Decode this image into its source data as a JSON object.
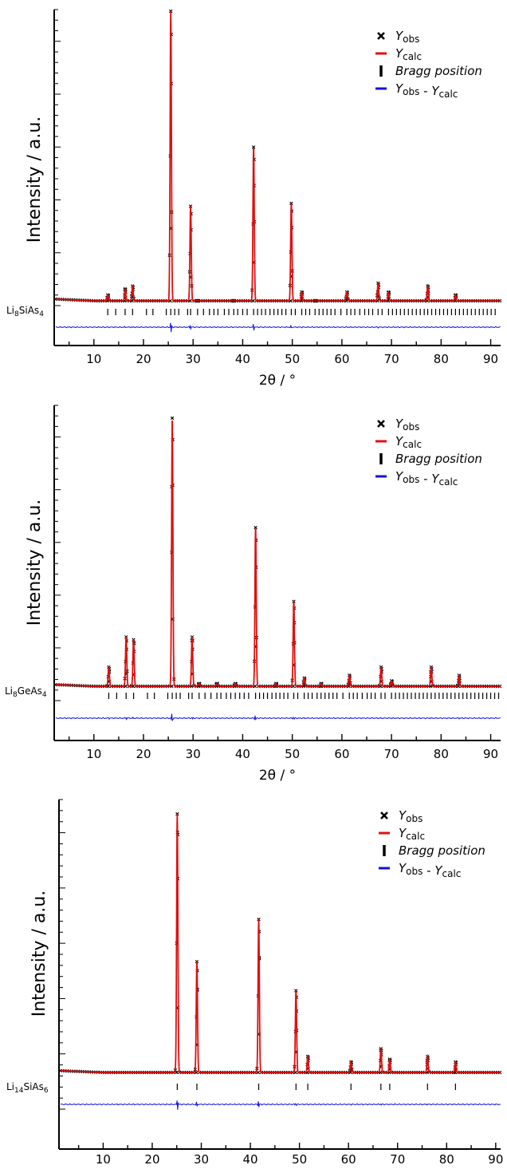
{
  "colors": {
    "obs": "#000000",
    "calc": "#e01010",
    "bragg": "#000000",
    "diff": "#1010e0"
  },
  "legend": [
    {
      "symbol": "cross",
      "label": "Y",
      "sub": "obs"
    },
    {
      "symbol": "red-line",
      "label": "Y",
      "sub": "calc"
    },
    {
      "symbol": "bar",
      "label": "Bragg position",
      "sub": ""
    },
    {
      "symbol": "blue-line",
      "label": "Y",
      "sub": "obs",
      "label2": " - Y",
      "sub2": "calc"
    }
  ],
  "chart_data": [
    {
      "type": "line",
      "title": "",
      "ylabel": "Intensity / a.u.",
      "xlabel": "2θ / °",
      "xlim": [
        2,
        92
      ],
      "xticks": [
        10,
        20,
        30,
        40,
        50,
        60,
        70,
        80,
        90
      ],
      "phase": {
        "main": "Li",
        "sub": "8",
        "rest": "SiAs",
        "sub2": "4"
      },
      "baseline": 0.02,
      "peaks": [
        {
          "x": 12.8,
          "y": 0.04
        },
        {
          "x": 16.3,
          "y": 0.06
        },
        {
          "x": 17.8,
          "y": 0.07
        },
        {
          "x": 25.5,
          "y": 1.0
        },
        {
          "x": 29.5,
          "y": 0.34
        },
        {
          "x": 30.9,
          "y": 0.02
        },
        {
          "x": 38.2,
          "y": 0.02
        },
        {
          "x": 42.2,
          "y": 0.54
        },
        {
          "x": 49.8,
          "y": 0.35
        },
        {
          "x": 51.9,
          "y": 0.05
        },
        {
          "x": 54.6,
          "y": 0.02
        },
        {
          "x": 61.0,
          "y": 0.05
        },
        {
          "x": 67.3,
          "y": 0.08
        },
        {
          "x": 69.4,
          "y": 0.05
        },
        {
          "x": 77.3,
          "y": 0.07
        },
        {
          "x": 82.9,
          "y": 0.04
        }
      ],
      "bragg_positions": [
        12.8,
        14.4,
        16.3,
        17.8,
        20.6,
        21.9,
        24.6,
        25.5,
        26.3,
        27.1,
        28.9,
        29.5,
        30.9,
        32.1,
        33.3,
        34.2,
        35.0,
        36.3,
        37.2,
        38.2,
        39.0,
        40.0,
        40.9,
        42.2,
        43.0,
        43.8,
        44.6,
        45.5,
        46.3,
        47.1,
        47.9,
        48.7,
        49.8,
        50.6,
        51.9,
        52.7,
        53.5,
        54.6,
        55.4,
        56.2,
        57.0,
        57.8,
        58.6,
        59.8,
        61.0,
        61.8,
        62.6,
        63.6,
        64.6,
        65.4,
        66.2,
        67.3,
        68.1,
        69.4,
        70.2,
        71.0,
        71.8,
        72.6,
        73.4,
        74.2,
        75.0,
        75.8,
        76.6,
        77.3,
        78.1,
        78.9,
        79.7,
        80.5,
        81.3,
        82.1,
        82.9,
        83.7,
        84.5,
        85.3,
        86.1,
        86.9,
        87.7,
        88.5,
        89.3,
        90.1,
        90.9
      ]
    },
    {
      "type": "line",
      "title": "",
      "ylabel": "Intensity / a.u.",
      "xlabel": "2θ / °",
      "xlim": [
        2,
        92
      ],
      "xticks": [
        10,
        20,
        30,
        40,
        50,
        60,
        70,
        80,
        90
      ],
      "phase": {
        "main": "Li",
        "sub": "8",
        "rest": "GeAs",
        "sub2": "4"
      },
      "baseline": 0.02,
      "peaks": [
        {
          "x": 13.0,
          "y": 0.09
        },
        {
          "x": 16.5,
          "y": 0.2
        },
        {
          "x": 18.0,
          "y": 0.19
        },
        {
          "x": 25.8,
          "y": 1.0
        },
        {
          "x": 29.8,
          "y": 0.2
        },
        {
          "x": 31.2,
          "y": 0.03
        },
        {
          "x": 34.8,
          "y": 0.03
        },
        {
          "x": 38.5,
          "y": 0.03
        },
        {
          "x": 42.6,
          "y": 0.6
        },
        {
          "x": 46.7,
          "y": 0.03
        },
        {
          "x": 50.3,
          "y": 0.33
        },
        {
          "x": 52.4,
          "y": 0.05
        },
        {
          "x": 55.8,
          "y": 0.03
        },
        {
          "x": 61.5,
          "y": 0.06
        },
        {
          "x": 67.9,
          "y": 0.09
        },
        {
          "x": 70.0,
          "y": 0.04
        },
        {
          "x": 78.0,
          "y": 0.09
        },
        {
          "x": 83.6,
          "y": 0.06
        }
      ],
      "bragg_positions": [
        13.0,
        14.6,
        16.5,
        18.0,
        20.8,
        22.2,
        24.9,
        25.8,
        26.6,
        27.4,
        29.1,
        29.8,
        31.2,
        32.4,
        33.6,
        34.8,
        35.6,
        36.7,
        37.6,
        38.5,
        39.4,
        40.3,
        41.2,
        42.6,
        43.4,
        44.2,
        45.0,
        45.9,
        46.7,
        47.5,
        48.3,
        49.1,
        50.3,
        51.1,
        52.4,
        53.2,
        54.0,
        55.0,
        55.8,
        56.6,
        57.4,
        58.2,
        59.0,
        60.2,
        61.5,
        62.3,
        63.1,
        64.1,
        65.1,
        65.9,
        66.7,
        67.9,
        68.7,
        70.0,
        70.8,
        71.6,
        72.4,
        73.2,
        74.0,
        74.8,
        75.6,
        76.4,
        77.2,
        78.0,
        78.8,
        79.6,
        80.4,
        81.2,
        82.0,
        82.8,
        83.6,
        84.4,
        85.2,
        86.0,
        86.8,
        87.6,
        88.4,
        89.2,
        90.0,
        90.8,
        91.6
      ]
    },
    {
      "type": "line",
      "title": "",
      "ylabel": "Intensity / a.u.",
      "xlabel": "2θ / °",
      "xlim": [
        1,
        91
      ],
      "xticks": [
        10,
        20,
        30,
        40,
        50,
        60,
        70,
        80,
        90
      ],
      "phase": {
        "main": "Li",
        "sub": "14",
        "rest": "SiAs",
        "sub2": "6"
      },
      "baseline": 0.02,
      "peaks": [
        {
          "x": 25.1,
          "y": 1.0
        },
        {
          "x": 29.1,
          "y": 0.44
        },
        {
          "x": 41.7,
          "y": 0.6
        },
        {
          "x": 49.3,
          "y": 0.33
        },
        {
          "x": 51.7,
          "y": 0.08
        },
        {
          "x": 60.5,
          "y": 0.06
        },
        {
          "x": 66.6,
          "y": 0.11
        },
        {
          "x": 68.4,
          "y": 0.07
        },
        {
          "x": 76.1,
          "y": 0.08
        },
        {
          "x": 81.8,
          "y": 0.06
        }
      ],
      "bragg_positions": [
        25.1,
        29.1,
        41.7,
        49.3,
        51.7,
        60.5,
        66.6,
        68.4,
        76.1,
        81.8
      ]
    }
  ]
}
